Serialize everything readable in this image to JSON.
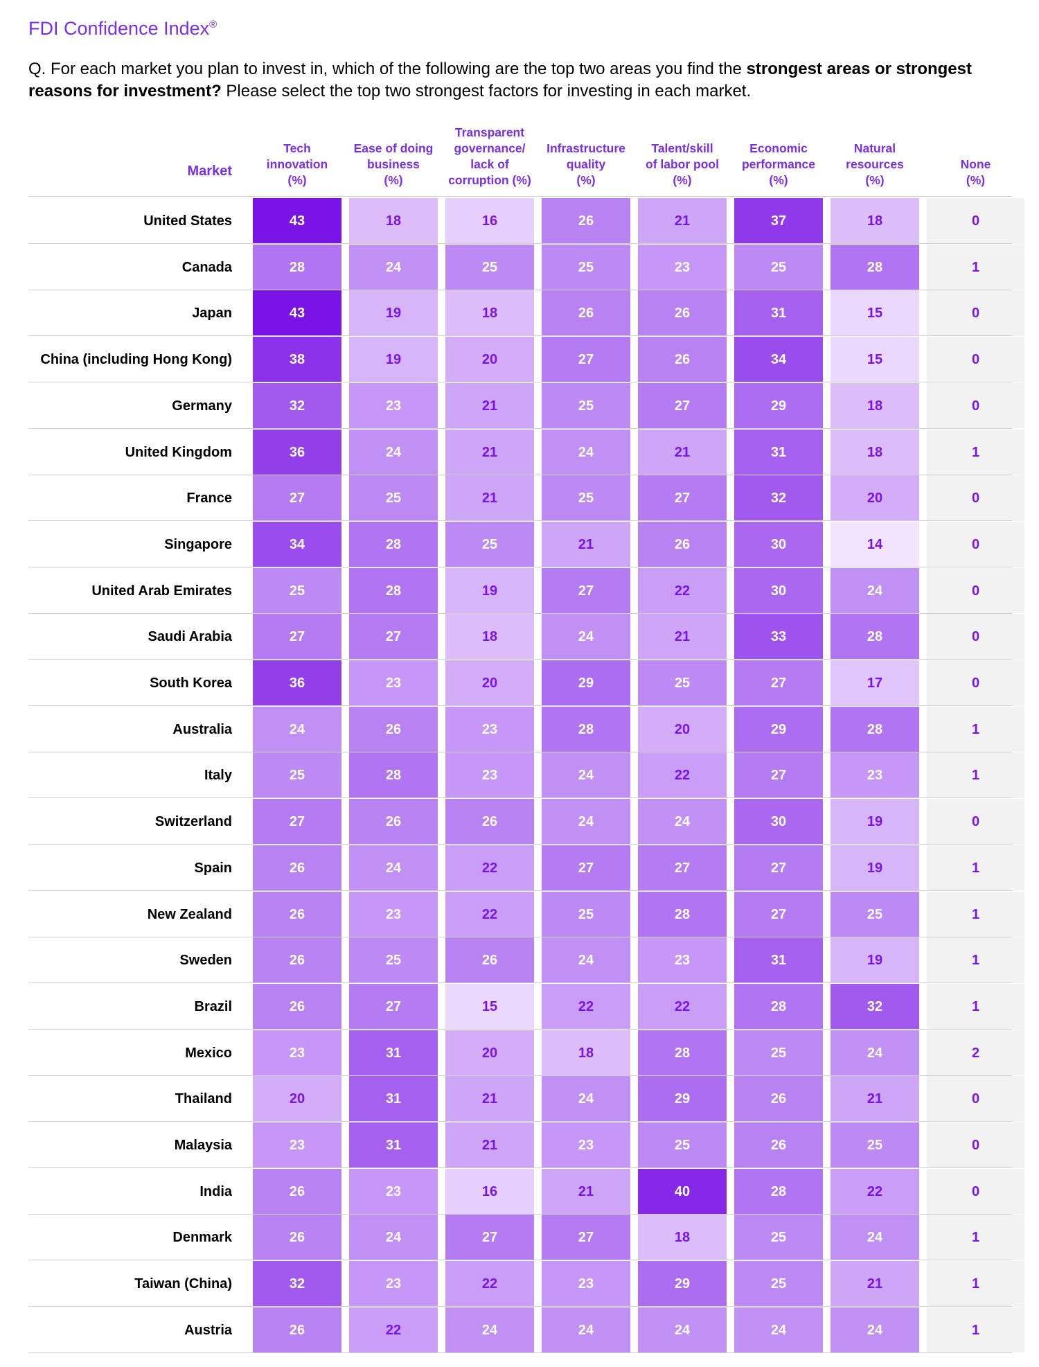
{
  "header": {
    "brand": "FDI Confidence Index",
    "brand_mark": "®",
    "question_part1": "Q. For each market you plan to invest in, which of the following are the top two areas you find the ",
    "question_bold": "strongest areas or strongest reasons for investment?",
    "question_part2": " Please select the top two strongest factors for investing in each market."
  },
  "colors": {
    "accent": "#7a2fe3",
    "scale_low": "#f2e4ff",
    "scale_high": "#7a14e6",
    "none_bg": "#f2f2f2",
    "none_text": "#7a14e6",
    "dark_text_value": "#7a14e6",
    "light_text_value": "#ffffff"
  },
  "chart_data": {
    "type": "table",
    "row_header": "Market",
    "columns": [
      "Tech innovation (%)",
      "Ease of doing business (%)",
      "Transparent governance/ lack of corruption (%)",
      "Infrastructure quality (%)",
      "Talent/skill of labor pool (%)",
      "Economic performance (%)",
      "Natural resources (%)",
      "None (%)"
    ],
    "column_lines": [
      [
        "Tech",
        "innovation",
        "(%)"
      ],
      [
        "Ease of doing",
        "business",
        "(%)"
      ],
      [
        "Transparent",
        "governance/",
        "lack of",
        "corruption (%)"
      ],
      [
        "Infrastructure",
        "quality",
        "(%)"
      ],
      [
        "Talent/skill",
        "of labor pool",
        "(%)"
      ],
      [
        "Economic",
        "performance",
        "(%)"
      ],
      [
        "Natural",
        "resources",
        "(%)"
      ],
      [
        "None",
        "(%)"
      ]
    ],
    "rows": [
      {
        "market": "United States",
        "values": [
          43,
          18,
          16,
          26,
          21,
          37,
          18,
          0
        ]
      },
      {
        "market": "Canada",
        "values": [
          28,
          24,
          25,
          25,
          23,
          25,
          28,
          1
        ]
      },
      {
        "market": "Japan",
        "values": [
          43,
          19,
          18,
          26,
          26,
          31,
          15,
          0
        ]
      },
      {
        "market": "China (including Hong Kong)",
        "values": [
          38,
          19,
          20,
          27,
          26,
          34,
          15,
          0
        ]
      },
      {
        "market": "Germany",
        "values": [
          32,
          23,
          21,
          25,
          27,
          29,
          18,
          0
        ]
      },
      {
        "market": "United Kingdom",
        "values": [
          36,
          24,
          21,
          24,
          21,
          31,
          18,
          1
        ]
      },
      {
        "market": "France",
        "values": [
          27,
          25,
          21,
          25,
          27,
          32,
          20,
          0
        ]
      },
      {
        "market": "Singapore",
        "values": [
          34,
          28,
          25,
          21,
          26,
          30,
          14,
          0
        ]
      },
      {
        "market": "United Arab Emirates",
        "values": [
          25,
          28,
          19,
          27,
          22,
          30,
          24,
          0
        ]
      },
      {
        "market": "Saudi Arabia",
        "values": [
          27,
          27,
          18,
          24,
          21,
          33,
          28,
          0
        ]
      },
      {
        "market": "South Korea",
        "values": [
          36,
          23,
          20,
          29,
          25,
          27,
          17,
          0
        ]
      },
      {
        "market": "Australia",
        "values": [
          24,
          26,
          23,
          28,
          20,
          29,
          28,
          1
        ]
      },
      {
        "market": "Italy",
        "values": [
          25,
          28,
          23,
          24,
          22,
          27,
          23,
          1
        ]
      },
      {
        "market": "Switzerland",
        "values": [
          27,
          26,
          26,
          24,
          24,
          30,
          19,
          0
        ]
      },
      {
        "market": "Spain",
        "values": [
          26,
          24,
          22,
          27,
          27,
          27,
          19,
          1
        ]
      },
      {
        "market": "New Zealand",
        "values": [
          26,
          23,
          22,
          25,
          28,
          27,
          25,
          1
        ]
      },
      {
        "market": "Sweden",
        "values": [
          26,
          25,
          26,
          24,
          23,
          31,
          19,
          1
        ]
      },
      {
        "market": "Brazil",
        "values": [
          26,
          27,
          15,
          22,
          22,
          28,
          32,
          1
        ]
      },
      {
        "market": "Mexico",
        "values": [
          23,
          31,
          20,
          18,
          28,
          25,
          24,
          2
        ]
      },
      {
        "market": "Thailand",
        "values": [
          20,
          31,
          21,
          24,
          29,
          26,
          21,
          0
        ]
      },
      {
        "market": "Malaysia",
        "values": [
          23,
          31,
          21,
          23,
          25,
          26,
          25,
          0
        ]
      },
      {
        "market": "India",
        "values": [
          26,
          23,
          16,
          21,
          40,
          28,
          22,
          0
        ]
      },
      {
        "market": "Denmark",
        "values": [
          26,
          24,
          27,
          27,
          18,
          25,
          24,
          1
        ]
      },
      {
        "market": "Taiwan (China)",
        "values": [
          32,
          23,
          22,
          23,
          29,
          25,
          21,
          1
        ]
      },
      {
        "market": "Austria",
        "values": [
          26,
          22,
          24,
          24,
          24,
          24,
          24,
          1
        ]
      }
    ]
  }
}
